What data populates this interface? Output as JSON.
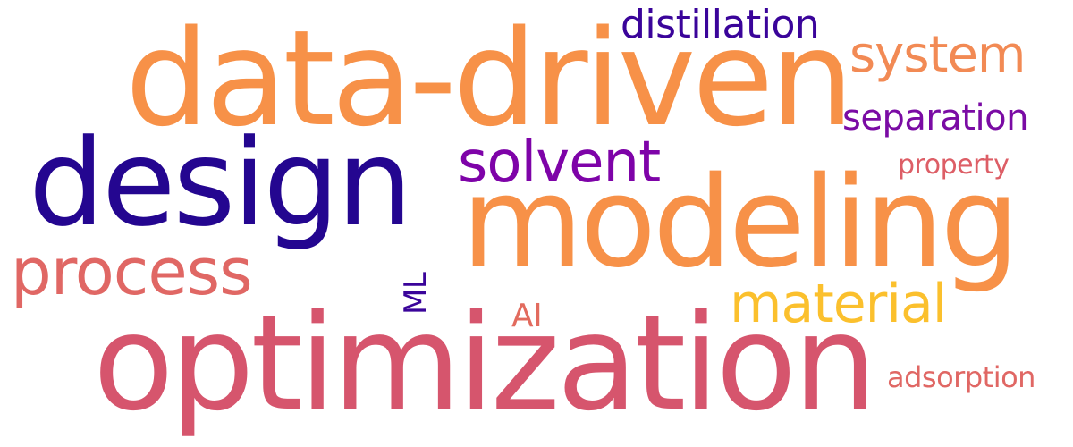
{
  "words": [
    {
      "text": "data-driven",
      "color": "#f79148"
    },
    {
      "text": "design",
      "color": "#240690"
    },
    {
      "text": "modeling",
      "color": "#f79148"
    },
    {
      "text": "optimization",
      "color": "#d6556d"
    },
    {
      "text": "process",
      "color": "#e06764"
    },
    {
      "text": "solvent",
      "color": "#7e03a8"
    },
    {
      "text": "material",
      "color": "#fbc02d"
    },
    {
      "text": "system",
      "color": "#f28a54"
    },
    {
      "text": "distillation",
      "color": "#3a049a"
    },
    {
      "text": "separation",
      "color": "#7a0ba4"
    },
    {
      "text": "property",
      "color": "#dd5e66"
    },
    {
      "text": "adsorption",
      "color": "#e06764"
    },
    {
      "text": "AI",
      "color": "#e26b5e"
    },
    {
      "text": "ML",
      "color": "#3a049a"
    }
  ]
}
